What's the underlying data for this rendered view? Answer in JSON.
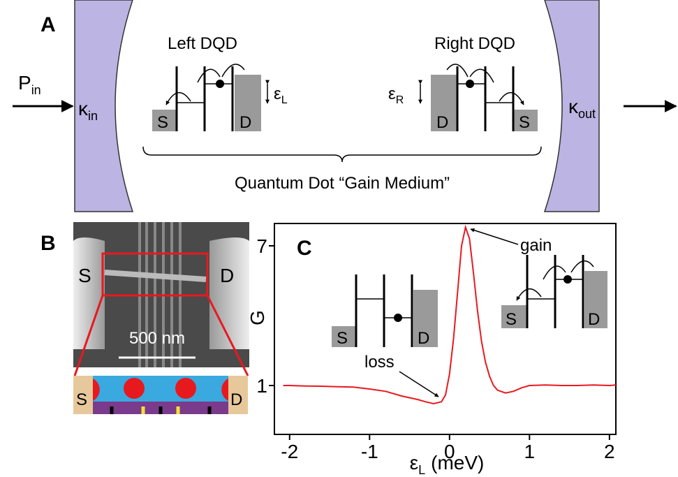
{
  "panel_a": {
    "label": "A",
    "p_in": {
      "base": "P",
      "sub": "in"
    },
    "kappa_in": {
      "base": "κ",
      "sub": "in"
    },
    "kappa_out": {
      "base": "κ",
      "sub": "out"
    },
    "left_dqd": {
      "title": "Left DQD",
      "epsilon": {
        "base": "ε",
        "sub": "L"
      },
      "source": "S",
      "drain": "D"
    },
    "right_dqd": {
      "title": "Right DQD",
      "epsilon": {
        "base": "ε",
        "sub": "R"
      },
      "source": "S",
      "drain": "D"
    },
    "caption": "Quantum Dot “Gain Medium”"
  },
  "panel_b": {
    "label": "B",
    "source": "S",
    "drain": "D",
    "scale_bar": "500 nm",
    "schematic": {
      "source": "S",
      "drain": "D"
    }
  },
  "chart_data": {
    "type": "line",
    "panel_label": "C",
    "y_label": "G",
    "x_label": {
      "base": "ε",
      "sub": "L",
      "unit": "(meV)"
    },
    "annotations": {
      "gain": "gain",
      "loss": "loss"
    },
    "insets": [
      {
        "source": "S",
        "drain": "D"
      },
      {
        "source": "S",
        "drain": "D"
      }
    ],
    "x": [
      -2.08,
      -2.0,
      -1.8,
      -1.6,
      -1.4,
      -1.2,
      -1.0,
      -0.8,
      -0.6,
      -0.4,
      -0.3,
      -0.2,
      -0.1,
      -0.05,
      0.0,
      0.05,
      0.1,
      0.15,
      0.2,
      0.25,
      0.3,
      0.35,
      0.4,
      0.45,
      0.5,
      0.55,
      0.6,
      0.7,
      0.8,
      0.9,
      1.0,
      1.2,
      1.4,
      1.6,
      1.8,
      2.0,
      2.08
    ],
    "values": [
      1.0,
      1.0,
      0.98,
      0.97,
      0.95,
      0.93,
      0.85,
      0.75,
      0.55,
      0.4,
      0.3,
      0.22,
      0.3,
      0.6,
      1.5,
      3.0,
      5.0,
      7.0,
      7.8,
      7.3,
      5.8,
      4.2,
      2.9,
      2.0,
      1.4,
      1.0,
      0.8,
      0.68,
      0.75,
      0.9,
      1.0,
      1.02,
      1.0,
      1.0,
      1.02,
      1.0,
      1.02
    ],
    "color": "#e8191e",
    "xlim": [
      -2.19,
      2.08
    ],
    "ylim": [
      -1.1,
      7.96
    ],
    "xticks": [
      -2,
      -1,
      0,
      1,
      2
    ],
    "yticks": [
      1,
      7
    ],
    "grid": false
  }
}
